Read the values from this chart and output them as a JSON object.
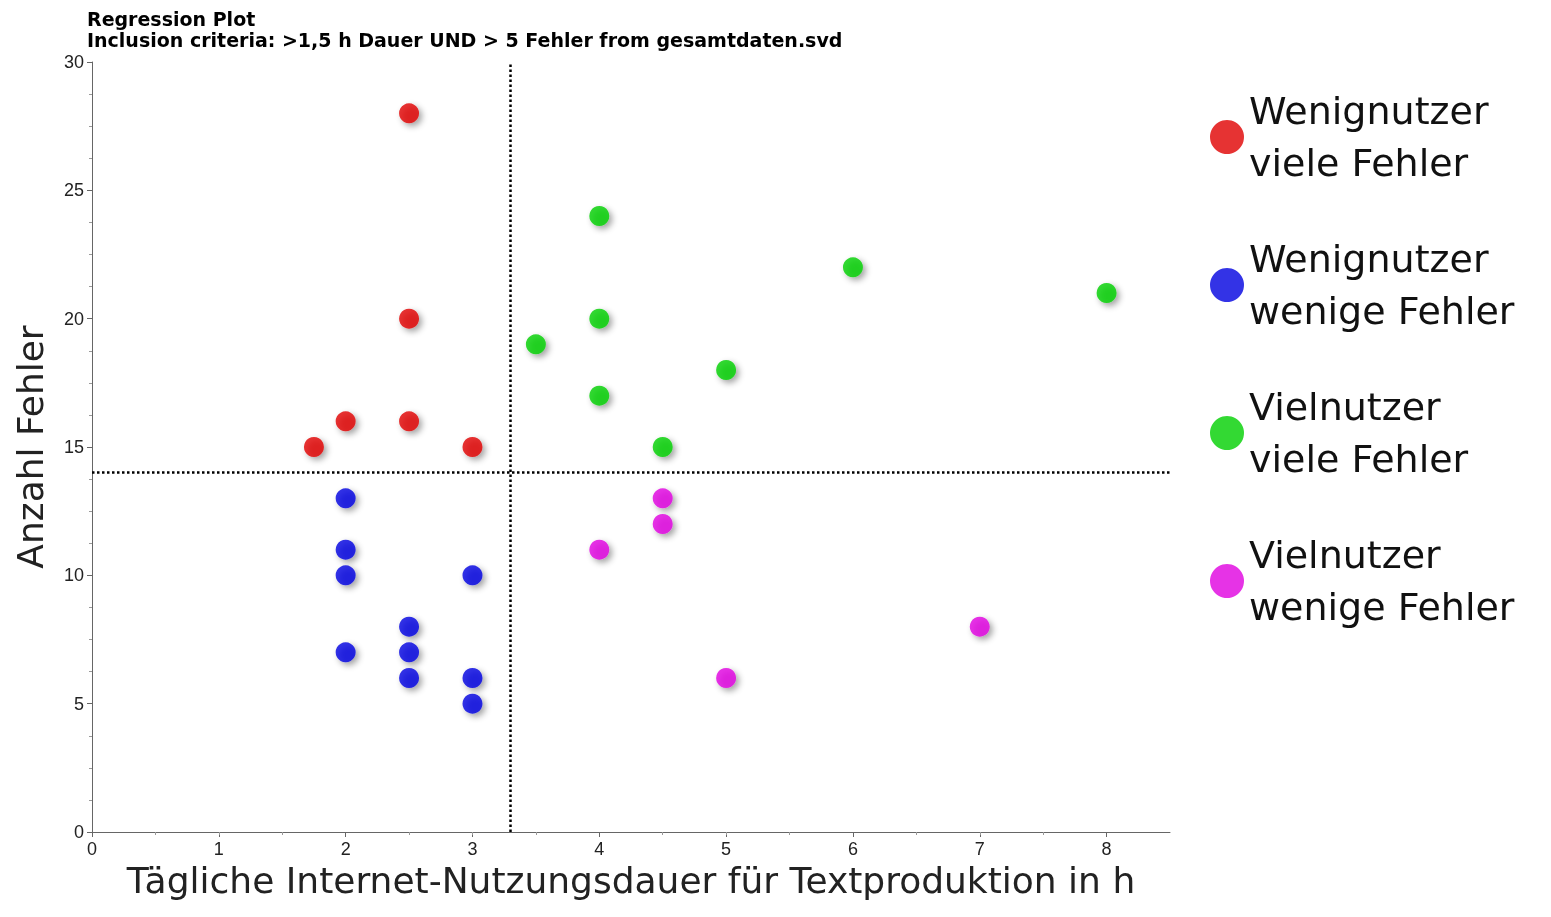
{
  "chart_data": {
    "type": "scatter",
    "title": "Regression Plot",
    "subtitle": "Inclusion criteria: >1,5 h Dauer UND > 5 Fehler from gesamtdaten.svd",
    "xlabel": "Tägliche Internet-Nutzungsdauer für Textproduktion in h",
    "ylabel": "Anzahl Fehler",
    "xlim": [
      0,
      8.5
    ],
    "xticks": [
      0,
      1,
      2,
      3,
      4,
      5,
      6,
      7,
      8
    ],
    "ylim": [
      0,
      30
    ],
    "yticks": [
      0,
      5,
      10,
      15,
      20,
      25,
      30
    ],
    "grid": false,
    "legend": "right",
    "marker": "circle",
    "series": [
      {
        "name": "Wenignutzer viele Fehler",
        "color": "#e00000",
        "x": [
          2.5,
          2.5,
          2,
          2.5,
          1.75,
          3
        ],
        "values": [
          28,
          20,
          16,
          16,
          15,
          15
        ]
      },
      {
        "name": "Wenignutzer wenige Fehler",
        "color": "#0000e0",
        "x": [
          2,
          2,
          2,
          2,
          2.5,
          2.5,
          2.5,
          3,
          3,
          3
        ],
        "values": [
          13,
          11,
          10,
          7,
          8,
          7,
          6,
          10,
          6,
          5
        ]
      },
      {
        "name": "Vielnutzer viele Fehler",
        "color": "#00d000",
        "x": [
          4,
          6,
          8,
          4,
          3.5,
          5,
          4,
          4.5
        ],
        "values": [
          24,
          22,
          21,
          20,
          19,
          18,
          17,
          15
        ]
      },
      {
        "name": "Vielnutzer wenige Fehler",
        "color": "#e000e0",
        "x": [
          4.5,
          4.5,
          4,
          7,
          5
        ],
        "values": [
          13,
          12,
          11,
          8,
          6
        ]
      }
    ],
    "ref_lines": [
      {
        "axis": "x",
        "value": 3.3,
        "line_style": "dotted",
        "color": "#000000"
      },
      {
        "axis": "y",
        "value": 14,
        "line_style": "dotted",
        "color": "#000000"
      }
    ]
  }
}
